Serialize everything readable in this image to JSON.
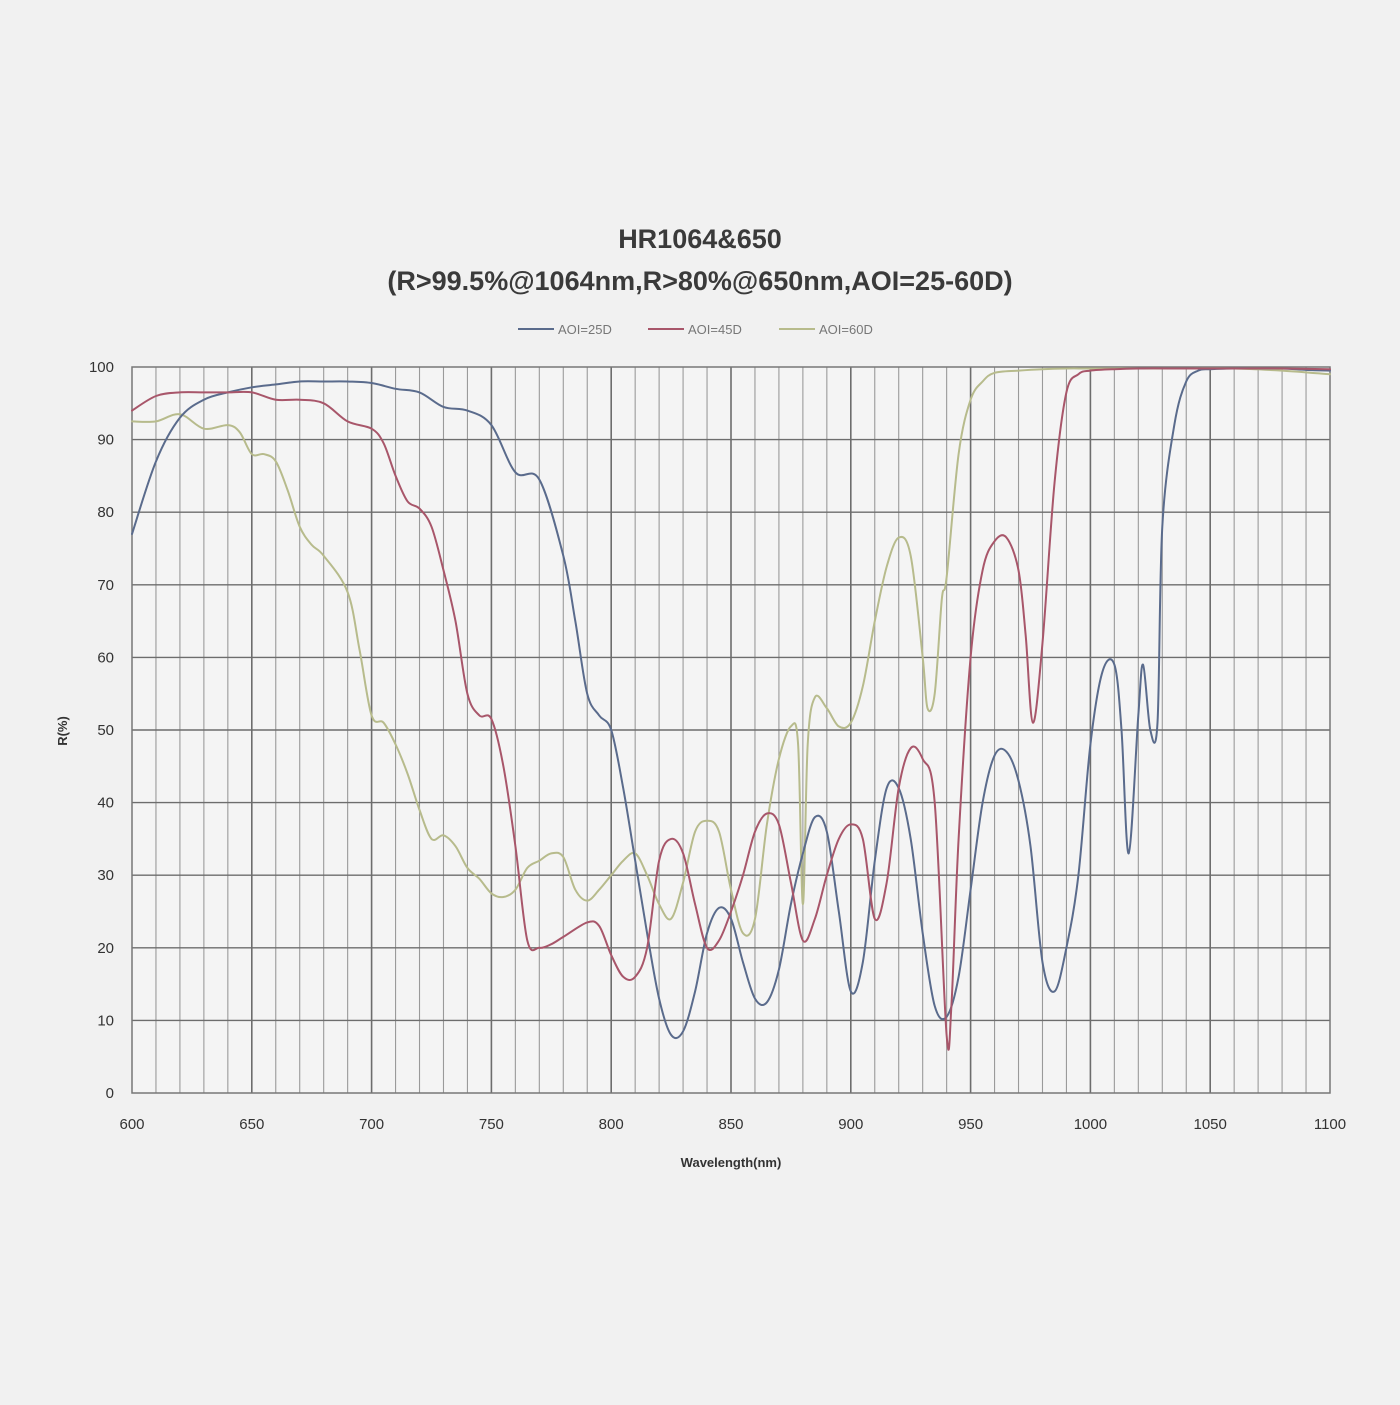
{
  "chart_data": {
    "type": "line",
    "title": "HR1064&650",
    "subtitle": "(R>99.5%@1064nm,R>80%@650nm,AOI=25-60D)",
    "xlabel": "Wavelength(nm)",
    "ylabel": "R(%)",
    "xlim": [
      600,
      1100
    ],
    "ylim": [
      0,
      100
    ],
    "x_ticks": [
      "600",
      "650",
      "700",
      "750",
      "800",
      "850",
      "900",
      "950",
      "1000",
      "1050",
      "1100"
    ],
    "y_ticks": [
      "0",
      "10",
      "20",
      "30",
      "40",
      "50",
      "60",
      "70",
      "80",
      "90",
      "100"
    ],
    "grid": "on",
    "legend_position": "top-center",
    "series": [
      {
        "name": "AOI=25D",
        "color": "#5a6b8c",
        "x": [
          600,
          610,
          620,
          630,
          640,
          650,
          660,
          670,
          680,
          690,
          700,
          710,
          720,
          730,
          740,
          750,
          760,
          770,
          780,
          785,
          790,
          795,
          800,
          805,
          810,
          815,
          820,
          825,
          830,
          835,
          840,
          845,
          850,
          855,
          860,
          865,
          870,
          875,
          880,
          885,
          890,
          895,
          900,
          905,
          910,
          915,
          920,
          925,
          930,
          935,
          940,
          945,
          950,
          955,
          960,
          965,
          970,
          975,
          980,
          985,
          990,
          995,
          1000,
          1005,
          1010,
          1013,
          1016,
          1020,
          1022,
          1025,
          1028,
          1030,
          1035,
          1040,
          1045,
          1050,
          1060,
          1070,
          1080,
          1090,
          1100
        ],
        "y": [
          77,
          87,
          93,
          95.5,
          96.5,
          97.2,
          97.6,
          98,
          98,
          98,
          97.8,
          97,
          96.5,
          94.5,
          94,
          92,
          85.5,
          84.5,
          74,
          65,
          55,
          52,
          50,
          42,
          32,
          22,
          13,
          8,
          8.5,
          14,
          22,
          25.5,
          24,
          18,
          13,
          12.5,
          17,
          26,
          33,
          38,
          36,
          25,
          14,
          18,
          32,
          42,
          42,
          35,
          22,
          12,
          10.5,
          16,
          28,
          40,
          46.5,
          47,
          43,
          34,
          18,
          14,
          20,
          30,
          48,
          58,
          59,
          50,
          33,
          52,
          59,
          50,
          51,
          78,
          92,
          98,
          99.5,
          99.7,
          99.8,
          99.8,
          99.8,
          99.6,
          99.5
        ]
      },
      {
        "name": "AOI=45D",
        "color": "#a8566a",
        "x": [
          600,
          610,
          620,
          630,
          640,
          650,
          660,
          670,
          680,
          690,
          700,
          705,
          710,
          715,
          720,
          725,
          730,
          735,
          740,
          745,
          750,
          755,
          760,
          765,
          770,
          775,
          780,
          790,
          795,
          800,
          805,
          810,
          815,
          820,
          825,
          830,
          835,
          840,
          845,
          850,
          855,
          860,
          865,
          870,
          875,
          880,
          885,
          890,
          895,
          900,
          905,
          910,
          915,
          920,
          925,
          930,
          935,
          940,
          942,
          945,
          950,
          955,
          960,
          965,
          970,
          973,
          976,
          980,
          985,
          990,
          995,
          1000,
          1010,
          1020,
          1040,
          1060,
          1080,
          1100
        ],
        "y": [
          94,
          96,
          96.5,
          96.5,
          96.5,
          96.5,
          95.5,
          95.5,
          95,
          92.5,
          91.5,
          89.5,
          85,
          81.5,
          80.5,
          78,
          72,
          65,
          55,
          52,
          51.5,
          45,
          34,
          21,
          20,
          20.5,
          21.5,
          23.5,
          23,
          19,
          16,
          16,
          20,
          32,
          35,
          33,
          26,
          20,
          21,
          25,
          30,
          36,
          38.5,
          37,
          29,
          21,
          24,
          30,
          35,
          37,
          35,
          24,
          29,
          42,
          47.5,
          46,
          40,
          8,
          12,
          35,
          60,
          72,
          76,
          76.5,
          72,
          63,
          51,
          62,
          84,
          96.5,
          99,
          99.5,
          99.7,
          99.8,
          99.8,
          99.8,
          99.8,
          99.7
        ]
      },
      {
        "name": "AOI=60D",
        "color": "#b7bb8c",
        "x": [
          600,
          610,
          620,
          630,
          640,
          645,
          650,
          655,
          660,
          665,
          670,
          675,
          680,
          690,
          695,
          700,
          705,
          710,
          715,
          720,
          725,
          730,
          735,
          740,
          745,
          750,
          755,
          760,
          765,
          770,
          775,
          780,
          785,
          790,
          795,
          800,
          805,
          810,
          815,
          820,
          825,
          830,
          835,
          840,
          845,
          850,
          855,
          860,
          865,
          870,
          875,
          878,
          880,
          882,
          885,
          890,
          895,
          900,
          905,
          910,
          915,
          920,
          925,
          930,
          932,
          935,
          938,
          940,
          945,
          950,
          955,
          960,
          970,
          980,
          990,
          1000,
          1020,
          1040,
          1060,
          1080,
          1100
        ],
        "y": [
          92.5,
          92.5,
          93.5,
          91.5,
          92,
          91,
          88,
          88,
          87,
          83,
          78,
          75.5,
          74,
          69,
          61,
          52,
          51,
          48,
          44,
          39,
          35,
          35.5,
          34,
          31,
          29.5,
          27.5,
          27,
          28,
          31,
          32,
          33,
          32.5,
          28,
          26.5,
          28,
          30,
          32,
          33,
          30,
          26,
          24,
          29,
          36,
          37.5,
          36,
          28,
          22,
          24,
          37,
          46,
          50.5,
          48,
          26,
          48,
          54.5,
          53,
          50.5,
          51,
          56,
          65,
          72.5,
          76.5,
          74,
          60,
          53,
          55,
          68,
          71,
          88,
          95.5,
          98,
          99.2,
          99.5,
          99.7,
          99.8,
          99.8,
          99.8,
          99.8,
          99.8,
          99.5,
          99
        ]
      }
    ]
  }
}
